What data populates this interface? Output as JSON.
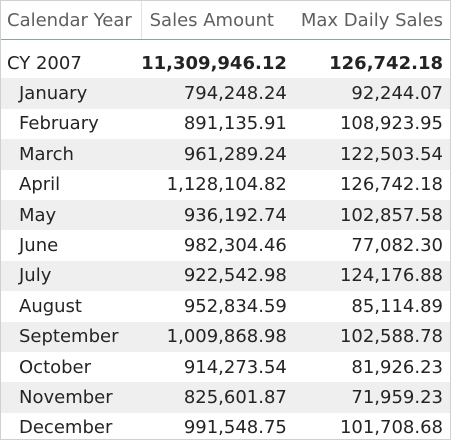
{
  "table": {
    "headers": [
      "Calendar Year",
      "Sales Amount",
      "Max Daily Sales"
    ],
    "total": {
      "label": "CY 2007",
      "sales": "11,309,946.12",
      "max": "126,742.18"
    },
    "rows": [
      {
        "label": "January",
        "sales": "794,248.24",
        "max": "92,244.07"
      },
      {
        "label": "February",
        "sales": "891,135.91",
        "max": "108,923.95"
      },
      {
        "label": "March",
        "sales": "961,289.24",
        "max": "122,503.54"
      },
      {
        "label": "April",
        "sales": "1,128,104.82",
        "max": "126,742.18"
      },
      {
        "label": "May",
        "sales": "936,192.74",
        "max": "102,857.58"
      },
      {
        "label": "June",
        "sales": "982,304.46",
        "max": "77,082.30"
      },
      {
        "label": "July",
        "sales": "922,542.98",
        "max": "124,176.88"
      },
      {
        "label": "August",
        "sales": "952,834.59",
        "max": "85,114.89"
      },
      {
        "label": "September",
        "sales": "1,009,868.98",
        "max": "102,588.78"
      },
      {
        "label": "October",
        "sales": "914,273.54",
        "max": "81,926.23"
      },
      {
        "label": "November",
        "sales": "825,601.87",
        "max": "71,959.23"
      },
      {
        "label": "December",
        "sales": "991,548.75",
        "max": "101,708.68"
      }
    ]
  }
}
